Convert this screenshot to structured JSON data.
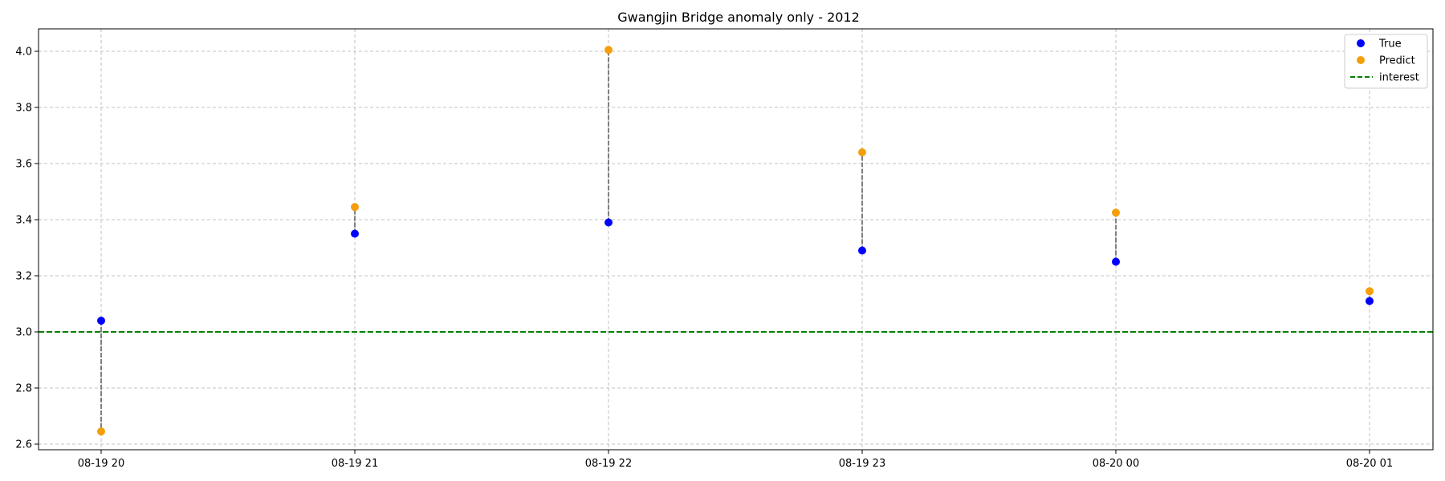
{
  "chart_data": {
    "type": "scatter",
    "title": "Gwangjin Bridge anomaly only - 2012",
    "xlabel": "",
    "ylabel": "",
    "categories": [
      "08-19 20",
      "08-19 21",
      "08-19 22",
      "08-19 23",
      "08-20 00",
      "08-20 01"
    ],
    "series": [
      {
        "name": "True",
        "color": "#0000ff",
        "values": [
          3.04,
          3.35,
          3.39,
          3.29,
          3.25,
          3.11
        ]
      },
      {
        "name": "Predict",
        "color": "#f59e0b",
        "values": [
          2.645,
          3.445,
          4.005,
          3.64,
          3.425,
          3.145
        ]
      }
    ],
    "interest": {
      "name": "interest",
      "value": 3.0,
      "color": "#008000",
      "style": "dashed"
    },
    "connector_color": "#808080",
    "ylim": [
      2.58,
      4.08
    ],
    "yticks": [
      "2.6",
      "2.8",
      "3.0",
      "3.2",
      "3.4",
      "3.6",
      "3.8",
      "4.0"
    ],
    "grid": true,
    "legend_position": "top-right"
  }
}
